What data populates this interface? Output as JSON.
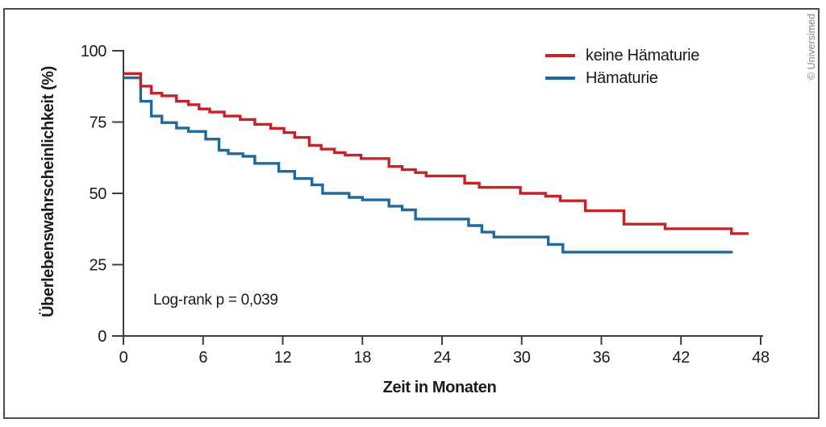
{
  "credit": "© Universimed",
  "frame_color": "#4c4c4c",
  "axis_color": "#3d3d3d",
  "text_color": "#1a1a1a",
  "legend": [
    {
      "label": "keine Hämaturie",
      "color": "#c8212a"
    },
    {
      "label": "Hämaturie",
      "color": "#1f6a9c"
    }
  ],
  "chart_data": {
    "type": "line",
    "subtype": "kaplan-meier-step",
    "title": "",
    "xlabel": "Zeit in Monaten",
    "ylabel": "Überlebenswahrscheinlichkeit (%)",
    "annotation": "Log-rank p = 0,039",
    "xlim": [
      0,
      48
    ],
    "ylim": [
      0,
      100
    ],
    "xticks": [
      0,
      6,
      12,
      18,
      24,
      30,
      36,
      42,
      48
    ],
    "yticks": [
      0,
      25,
      50,
      75,
      100
    ],
    "grid": false,
    "legend_position": "top-right",
    "series": [
      {
        "name": "keine Hämaturie",
        "color": "#c8212a",
        "end_x": 47.1,
        "points": [
          [
            0,
            92
          ],
          [
            1.3,
            87.6
          ],
          [
            2.1,
            85.1
          ],
          [
            2.9,
            84.2
          ],
          [
            4,
            82.3
          ],
          [
            4.9,
            81.1
          ],
          [
            5.7,
            79.6
          ],
          [
            6.5,
            78.5
          ],
          [
            7.6,
            77.1
          ],
          [
            8.8,
            75.9
          ],
          [
            9.9,
            74.2
          ],
          [
            11.1,
            72.8
          ],
          [
            12.1,
            71.3
          ],
          [
            12.9,
            69.6
          ],
          [
            14,
            66.8
          ],
          [
            14.9,
            65.5
          ],
          [
            15.9,
            64.3
          ],
          [
            16.7,
            63.4
          ],
          [
            17.9,
            62.2
          ],
          [
            20,
            59.4
          ],
          [
            21,
            58.3
          ],
          [
            22,
            57.3
          ],
          [
            22.8,
            56.1
          ],
          [
            25.7,
            53.6
          ],
          [
            26.8,
            52.1
          ],
          [
            29.9,
            50
          ],
          [
            31.8,
            49
          ],
          [
            32.9,
            47.4
          ],
          [
            34.8,
            43.9
          ],
          [
            37.7,
            39.2
          ],
          [
            40.8,
            37.6
          ],
          [
            45.8,
            35.9
          ]
        ]
      },
      {
        "name": "Hämaturie",
        "color": "#1f6a9c",
        "end_x": 45.9,
        "points": [
          [
            0,
            90.5
          ],
          [
            1.3,
            82.3
          ],
          [
            2.1,
            77.1
          ],
          [
            2.9,
            74.8
          ],
          [
            4,
            72.9
          ],
          [
            4.9,
            71.7
          ],
          [
            6.2,
            69
          ],
          [
            7.2,
            65.1
          ],
          [
            7.9,
            63.9
          ],
          [
            9,
            63
          ],
          [
            9.9,
            60.5
          ],
          [
            11.7,
            57.7
          ],
          [
            12.9,
            55.2
          ],
          [
            14.2,
            53
          ],
          [
            15,
            50
          ],
          [
            17,
            48.6
          ],
          [
            18,
            47.7
          ],
          [
            20,
            45.5
          ],
          [
            21,
            44.2
          ],
          [
            22,
            41
          ],
          [
            26,
            38.7
          ],
          [
            27,
            36.4
          ],
          [
            27.9,
            34.7
          ],
          [
            32,
            32.1
          ],
          [
            33.1,
            29.4
          ]
        ]
      }
    ]
  }
}
